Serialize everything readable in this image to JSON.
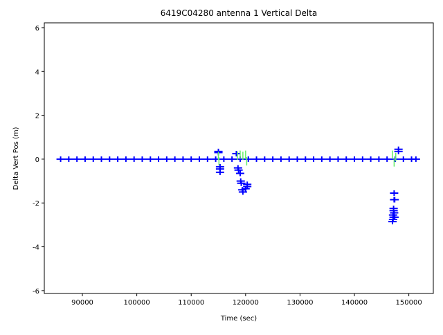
{
  "chart_data": {
    "type": "scatter",
    "title": "6419C04280 antenna 1 Vertical Delta",
    "x_label": "Time (sec)",
    "y_label": "Delta Vert Pos (m)",
    "xlim": [
      83000,
      154500
    ],
    "ylim": [
      -6.13,
      6.22
    ],
    "xticks": [
      90000,
      100000,
      110000,
      120000,
      130000,
      140000,
      150000
    ],
    "yticks": [
      -6,
      -4,
      -2,
      0,
      2,
      4,
      6
    ],
    "series": [
      {
        "color": "#0000ff",
        "marker": "+",
        "x": [
          86000,
          87500,
          89000,
          90500,
          92000,
          93500,
          95000,
          96500,
          98000,
          99500,
          101000,
          102500,
          104000,
          105500,
          107000,
          108500,
          110000,
          111500,
          113000,
          114500,
          116000,
          117500,
          119000,
          120500,
          122000,
          123500,
          125000,
          126500,
          128000,
          129500,
          131000,
          132500,
          134000,
          135500,
          137000,
          138500,
          140000,
          141500,
          143000,
          144500,
          146000,
          147500,
          149000,
          150500,
          151300,
          115000,
          115000,
          115300,
          115300,
          115300,
          118300,
          118600,
          118700,
          119000,
          119100,
          119200,
          119400,
          119500,
          120000,
          120300,
          120300,
          147300,
          147300,
          147400,
          147200,
          147200,
          147300,
          147100,
          147200,
          147400,
          147100,
          147000,
          148100,
          148100
        ],
        "values": [
          0,
          0,
          0,
          0,
          0,
          0,
          0,
          0,
          0,
          0,
          0,
          0,
          0,
          0,
          0,
          0,
          0,
          0,
          0,
          0,
          0,
          0,
          0,
          0,
          0,
          0,
          0,
          0,
          0,
          0,
          0,
          0,
          0,
          0,
          0,
          0,
          0,
          0,
          0,
          0,
          0,
          0,
          0,
          0,
          0,
          0.35,
          0.3,
          -0.35,
          -0.45,
          -0.6,
          0.25,
          -0.4,
          -0.5,
          -0.65,
          -1.0,
          -1.1,
          -1.4,
          -1.5,
          -1.35,
          -1.25,
          -1.15,
          -1.55,
          -1.85,
          -1.85,
          -2.25,
          -2.35,
          -2.45,
          -2.55,
          -2.65,
          -2.65,
          -2.75,
          -2.85,
          0.45,
          0.35
        ]
      },
      {
        "color": "#66ee66",
        "marker": "|",
        "x": [
          115000,
          115100,
          118500,
          119000,
          119500,
          120000,
          120200,
          147000,
          147300,
          147600
        ],
        "values": [
          0.15,
          -0.1,
          0.15,
          0.2,
          0.15,
          0.2,
          -0.1,
          0.2,
          -0.15,
          0.1
        ]
      }
    ]
  }
}
